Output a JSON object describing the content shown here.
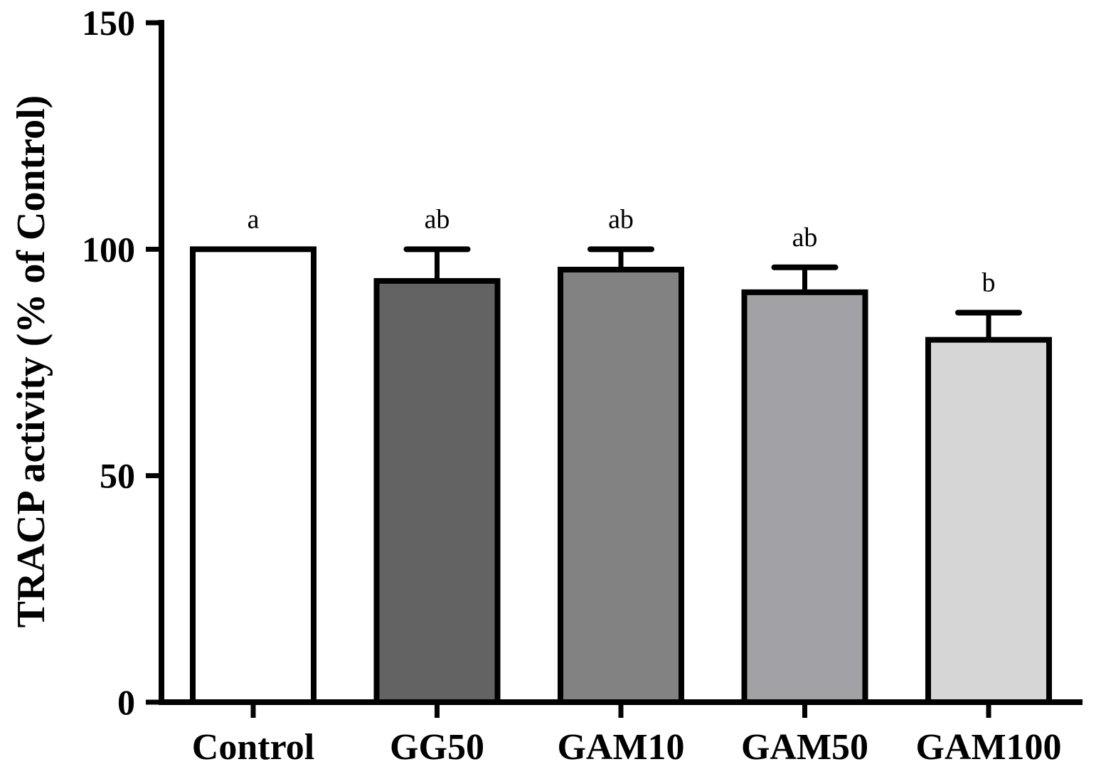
{
  "chart_data": {
    "type": "bar",
    "title": "",
    "xlabel": "",
    "ylabel": "TRACP activity (% of Control)",
    "ylim": [
      0,
      150
    ],
    "yticks": [
      0,
      50,
      100,
      150
    ],
    "grid": false,
    "categories": [
      "Control",
      "GG50",
      "GAM10",
      "GAM50",
      "GAM100"
    ],
    "values": [
      100,
      93,
      95.5,
      90.5,
      80
    ],
    "errors": [
      0,
      7,
      4.5,
      5.5,
      6
    ],
    "significance": [
      "a",
      "ab",
      "ab",
      "ab",
      "b"
    ],
    "colors": [
      "#ffffff",
      "#636363",
      "#828282",
      "#a2a2a6",
      "#d6d6d6"
    ]
  }
}
